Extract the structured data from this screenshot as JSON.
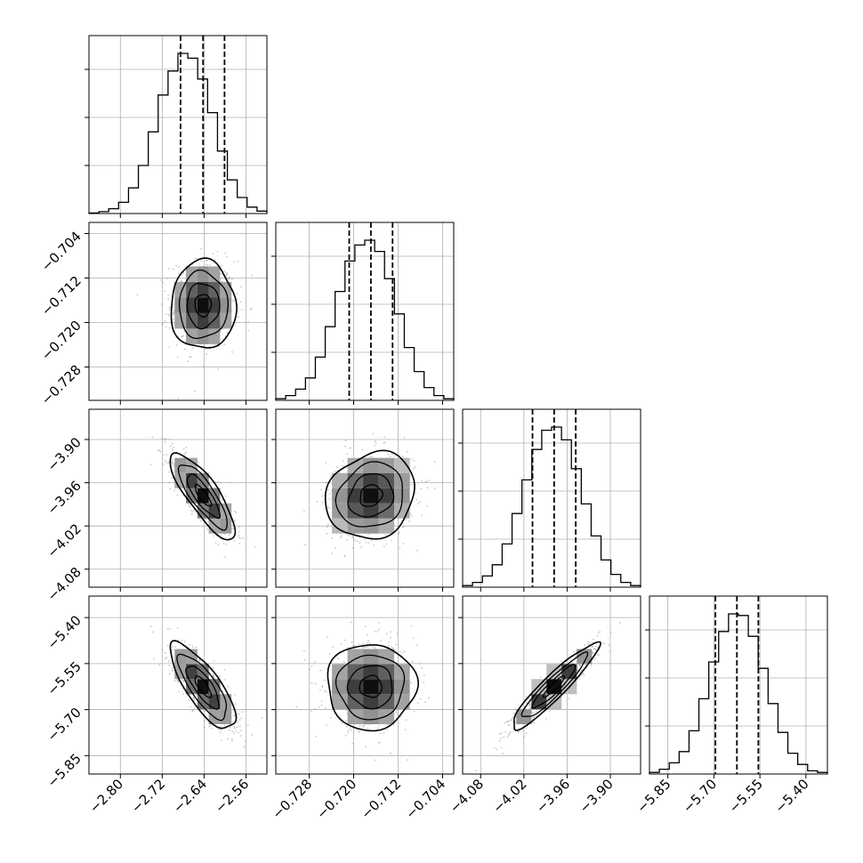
{
  "chart_data": {
    "type": "corner",
    "grid": true,
    "parameters": [
      {
        "index": 0,
        "axis_range": [
          -2.86,
          -2.52
        ],
        "ticks": [
          {
            "v": -2.8,
            "label": "−2.80"
          },
          {
            "v": -2.72,
            "label": "−2.72"
          },
          {
            "v": -2.64,
            "label": "−2.64"
          },
          {
            "v": -2.56,
            "label": "−2.56"
          }
        ],
        "quantiles": [
          -2.685,
          -2.642,
          -2.601
        ],
        "histogram": [
          0.003,
          0.012,
          0.03,
          0.07,
          0.16,
          0.3,
          0.51,
          0.74,
          0.89,
          1.0,
          0.97,
          0.84,
          0.63,
          0.39,
          0.21,
          0.1,
          0.04,
          0.015
        ]
      },
      {
        "index": 1,
        "axis_range": [
          -0.734,
          -0.702
        ],
        "ticks": [
          {
            "v": -0.704,
            "label": "−0.704"
          },
          {
            "v": -0.712,
            "label": "−0.712"
          },
          {
            "v": -0.72,
            "label": "−0.720"
          },
          {
            "v": -0.728,
            "label": "−0.728"
          }
        ],
        "xticks": [
          {
            "v": -0.728,
            "label": "−0.728"
          },
          {
            "v": -0.72,
            "label": "−0.720"
          },
          {
            "v": -0.712,
            "label": "−0.712"
          },
          {
            "v": -0.704,
            "label": "−0.704"
          }
        ],
        "quantiles": [
          -0.7208,
          -0.7169,
          -0.713
        ],
        "histogram": [
          0.01,
          0.03,
          0.07,
          0.14,
          0.27,
          0.46,
          0.68,
          0.87,
          0.97,
          1.0,
          0.93,
          0.76,
          0.54,
          0.33,
          0.18,
          0.08,
          0.03,
          0.01
        ]
      },
      {
        "index": 2,
        "axis_range": [
          -4.105,
          -3.858
        ],
        "ticks": [
          {
            "v": -3.9,
            "label": "−3.90"
          },
          {
            "v": -3.96,
            "label": "−3.96"
          },
          {
            "v": -4.02,
            "label": "−4.02"
          },
          {
            "v": -4.08,
            "label": "−4.08"
          }
        ],
        "xticks": [
          {
            "v": -4.08,
            "label": "−4.08"
          },
          {
            "v": -4.02,
            "label": "−4.02"
          },
          {
            "v": -3.96,
            "label": "−3.96"
          },
          {
            "v": -3.9,
            "label": "−3.90"
          }
        ],
        "quantiles": [
          -4.008,
          -3.978,
          -3.948
        ],
        "histogram": [
          0.01,
          0.03,
          0.07,
          0.14,
          0.27,
          0.46,
          0.67,
          0.86,
          0.98,
          1.0,
          0.92,
          0.74,
          0.52,
          0.32,
          0.17,
          0.08,
          0.03,
          0.01
        ]
      },
      {
        "index": 3,
        "axis_range": [
          -5.91,
          -5.33
        ],
        "ticks": [
          {
            "v": -5.4,
            "label": "−5.40"
          },
          {
            "v": -5.55,
            "label": "−5.55"
          },
          {
            "v": -5.7,
            "label": "−5.70"
          },
          {
            "v": -5.85,
            "label": "−5.85"
          }
        ],
        "xticks": [
          {
            "v": -5.85,
            "label": "−5.85"
          },
          {
            "v": -5.7,
            "label": "−5.70"
          },
          {
            "v": -5.55,
            "label": "−5.55"
          },
          {
            "v": -5.4,
            "label": "−5.40"
          }
        ],
        "quantiles": [
          -5.695,
          -5.625,
          -5.555
        ],
        "histogram": [
          0.01,
          0.03,
          0.07,
          0.14,
          0.27,
          0.47,
          0.7,
          0.89,
          1.0,
          0.99,
          0.86,
          0.66,
          0.44,
          0.26,
          0.13,
          0.06,
          0.02,
          0.01
        ]
      }
    ],
    "x_tick_labels": {
      "0": [
        {
          "v": -2.8,
          "label": "−2.80"
        },
        {
          "v": -2.72,
          "label": "−2.72"
        },
        {
          "v": -2.64,
          "label": "−2.64"
        },
        {
          "v": -2.56,
          "label": "−2.56"
        }
      ]
    },
    "pairs": [
      {
        "row": 1,
        "col": 0,
        "center": [
          -2.642,
          -0.7169
        ],
        "sigma": [
          0.031,
          0.004
        ],
        "rho": 0.0
      },
      {
        "row": 2,
        "col": 0,
        "center": [
          -2.642,
          -3.978
        ],
        "sigma": [
          0.031,
          0.03
        ],
        "rho": -0.82
      },
      {
        "row": 2,
        "col": 1,
        "center": [
          -0.7169,
          -3.978
        ],
        "sigma": [
          0.004,
          0.03
        ],
        "rho": 0.15
      },
      {
        "row": 3,
        "col": 0,
        "center": [
          -2.642,
          -5.625
        ],
        "sigma": [
          0.031,
          0.07
        ],
        "rho": -0.78
      },
      {
        "row": 3,
        "col": 1,
        "center": [
          -0.7169,
          -5.625
        ],
        "sigma": [
          0.004,
          0.07
        ],
        "rho": 0.0
      },
      {
        "row": 3,
        "col": 2,
        "center": [
          -3.978,
          -5.625
        ],
        "sigma": [
          0.03,
          0.07
        ],
        "rho": 0.93
      }
    ],
    "contour_levels_sigma": [
      0.5,
      1.0,
      1.5,
      2.0
    ],
    "colors": {
      "line": "#000000",
      "grid": "#b0b0b0",
      "scatter": "#9a9a9a"
    }
  }
}
